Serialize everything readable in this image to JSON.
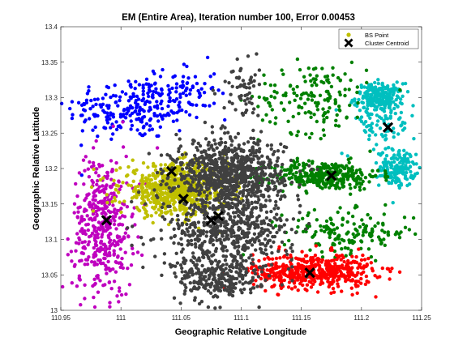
{
  "chart_data": {
    "type": "scatter",
    "title": "EM (Entire Area), Iteration number 100, Error 0.00453",
    "xlabel": "Geographic Relative Longitude",
    "ylabel": "Geographic Relative Latitude",
    "xlim": [
      110.95,
      111.25
    ],
    "ylim": [
      13.0,
      13.4
    ],
    "x_ticks": [
      110.95,
      111,
      111.05,
      111.1,
      111.15,
      111.2,
      111.25
    ],
    "x_tick_labels": [
      "110.95",
      "111",
      "111.05",
      "111.1",
      "111.15",
      "111.2",
      "111.25"
    ],
    "y_ticks": [
      13,
      13.05,
      13.1,
      13.15,
      13.2,
      13.25,
      13.3,
      13.35,
      13.4
    ],
    "y_tick_labels": [
      "13",
      "13.05",
      "13.1",
      "13.15",
      "13.2",
      "13.25",
      "13.3",
      "13.35",
      "13.4"
    ],
    "grid": false,
    "legend_position": "top-right",
    "legend": [
      {
        "label": "BS Point",
        "marker": "dot",
        "color": "#bfbf00"
      },
      {
        "label": "Cluster Centroid",
        "marker": "x",
        "color": "#000000"
      }
    ],
    "clusters": [
      {
        "color": "#0000ff",
        "regions": [
          {
            "cx": 111.01,
            "cy": 13.285,
            "rx": 0.055,
            "ry": 0.045,
            "n": 240
          },
          {
            "cx": 111.055,
            "cy": 13.31,
            "rx": 0.025,
            "ry": 0.04,
            "n": 60
          }
        ]
      },
      {
        "color": "#00bfbf",
        "regions": [
          {
            "cx": 111.215,
            "cy": 13.3,
            "rx": 0.02,
            "ry": 0.02,
            "n": 220
          },
          {
            "cx": 111.23,
            "cy": 13.2,
            "rx": 0.015,
            "ry": 0.025,
            "n": 160
          },
          {
            "cx": 111.215,
            "cy": 13.26,
            "rx": 0.03,
            "ry": 0.04,
            "n": 80
          }
        ]
      },
      {
        "color": "#008000",
        "regions": [
          {
            "cx": 111.17,
            "cy": 13.19,
            "rx": 0.045,
            "ry": 0.02,
            "n": 330
          },
          {
            "cx": 111.16,
            "cy": 13.3,
            "rx": 0.045,
            "ry": 0.05,
            "n": 160
          },
          {
            "cx": 111.19,
            "cy": 13.11,
            "rx": 0.055,
            "ry": 0.03,
            "n": 160
          }
        ]
      },
      {
        "color": "#ff0000",
        "regions": [
          {
            "cx": 111.16,
            "cy": 13.055,
            "rx": 0.05,
            "ry": 0.025,
            "n": 520
          }
        ]
      },
      {
        "color": "#bf00bf",
        "regions": [
          {
            "cx": 110.985,
            "cy": 13.12,
            "rx": 0.025,
            "ry": 0.1,
            "n": 420
          }
        ]
      },
      {
        "color": "#bfbf00",
        "regions": [
          {
            "cx": 111.045,
            "cy": 13.17,
            "rx": 0.045,
            "ry": 0.035,
            "n": 700
          }
        ]
      },
      {
        "color": "#404040",
        "regions": [
          {
            "cx": 111.09,
            "cy": 13.19,
            "rx": 0.045,
            "ry": 0.05,
            "n": 900
          },
          {
            "cx": 111.09,
            "cy": 13.11,
            "rx": 0.055,
            "ry": 0.05,
            "n": 500
          },
          {
            "cx": 111.08,
            "cy": 13.045,
            "rx": 0.035,
            "ry": 0.03,
            "n": 260
          },
          {
            "cx": 111.1,
            "cy": 13.31,
            "rx": 0.015,
            "ry": 0.04,
            "n": 60
          }
        ]
      }
    ],
    "centroids": [
      {
        "x": 110.988,
        "y": 13.127
      },
      {
        "x": 111.042,
        "y": 13.196
      },
      {
        "x": 111.052,
        "y": 13.157
      },
      {
        "x": 111.075,
        "y": 13.127
      },
      {
        "x": 111.081,
        "y": 13.133
      },
      {
        "x": 111.175,
        "y": 13.19
      },
      {
        "x": 111.157,
        "y": 13.053
      },
      {
        "x": 111.222,
        "y": 13.258
      }
    ]
  }
}
